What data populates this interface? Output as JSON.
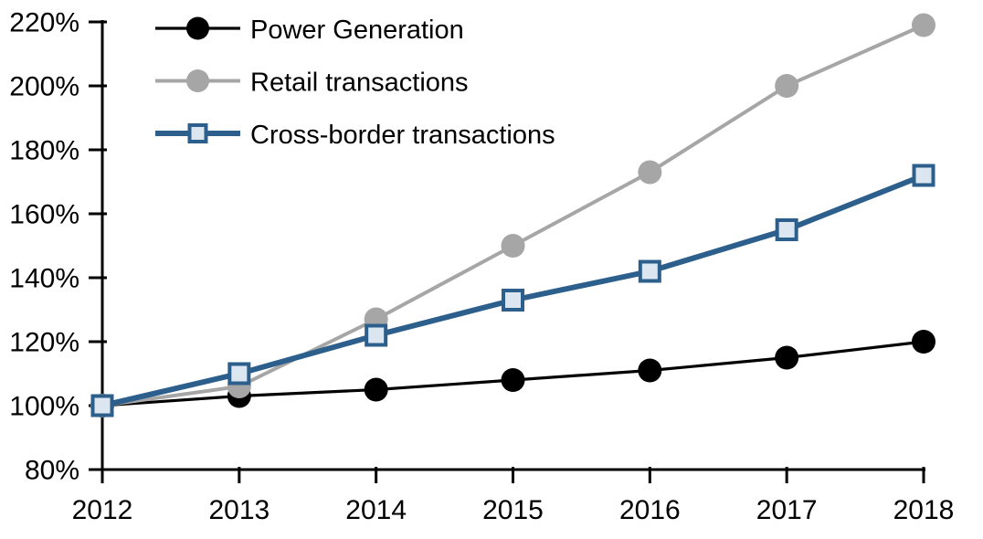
{
  "chart_data": {
    "type": "line",
    "title": "",
    "xlabel": "",
    "ylabel": "",
    "grid": false,
    "background_color": "#ffffff",
    "axis_color": "#000000",
    "text_color": "#000000",
    "categories": [
      "2012",
      "2013",
      "2014",
      "2015",
      "2016",
      "2017",
      "2018"
    ],
    "series": [
      {
        "name": "Power Generation",
        "color": "#000000",
        "marker": "circle",
        "marker_fill": "#000000",
        "line_width": 3.2,
        "values": [
          100,
          103,
          105,
          108,
          111,
          115,
          120
        ]
      },
      {
        "name": "Retail transactions",
        "color": "#a6a6a6",
        "marker": "circle",
        "marker_fill": "#a6a6a6",
        "line_width": 4,
        "values": [
          100,
          106,
          127,
          150,
          173,
          200,
          219
        ]
      },
      {
        "name": "Cross-border transactions",
        "color": "#2d5f8c",
        "marker": "square",
        "marker_fill": "#dce6f1",
        "line_width": 6,
        "values": [
          100,
          110,
          122,
          133,
          142,
          155,
          172
        ]
      }
    ],
    "y_axis": {
      "min": 80,
      "max": 220,
      "step": 20,
      "unit": "%",
      "tick_labels": [
        "80%",
        "100%",
        "120%",
        "140%",
        "160%",
        "180%",
        "200%",
        "220%"
      ]
    },
    "x_axis": {
      "tick_labels": [
        "2012",
        "2013",
        "2014",
        "2015",
        "2016",
        "2017",
        "2018"
      ]
    },
    "legend": {
      "position": "top-left",
      "entries": [
        "Power Generation",
        "Retail transactions",
        "Cross-border transactions"
      ]
    }
  }
}
